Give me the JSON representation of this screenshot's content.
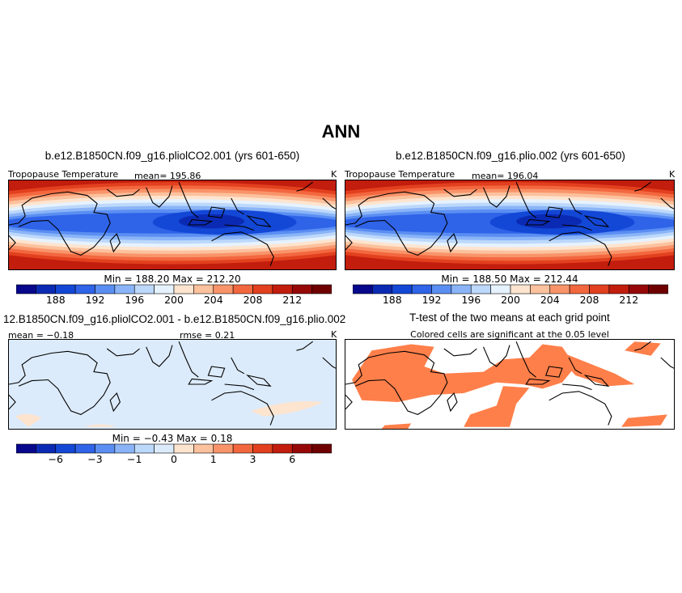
{
  "title": "ANN",
  "panels": [
    {
      "id": "p1",
      "case_title": "b.e12.B1850CN.f09_g16.pliolCO2.001 (yrs 601-650)",
      "variable": "Tropopause Temperature",
      "stat_left": "mean=  195.86",
      "units": "K",
      "minmax": "Min =  188.20  Max =  212.20",
      "colorbar_labels": [
        "188",
        "192",
        "196",
        "200",
        "204",
        "208",
        "212"
      ],
      "colorbar_colors": [
        "#08088c",
        "#0b2ab4",
        "#1347d6",
        "#2f63e8",
        "#5a8ef2",
        "#8ab4f7",
        "#bcd8fb",
        "#e6f2fe",
        "#fde4cf",
        "#fcc19d",
        "#f9946a",
        "#f3673f",
        "#e2401e",
        "#c21d0d",
        "#960808",
        "#6e0000"
      ],
      "field": "temperature"
    },
    {
      "id": "p2",
      "case_title": "b.e12.B1850CN.f09_g16.plio.002 (yrs 601-650)",
      "variable": "Tropopause Temperature",
      "stat_left": "mean=  196.04",
      "units": "K",
      "minmax": "Min =  188.50  Max =  212.44",
      "colorbar_labels": [
        "188",
        "192",
        "196",
        "200",
        "204",
        "208",
        "212"
      ],
      "colorbar_colors": [
        "#08088c",
        "#0b2ab4",
        "#1347d6",
        "#2f63e8",
        "#5a8ef2",
        "#8ab4f7",
        "#bcd8fb",
        "#e6f2fe",
        "#fde4cf",
        "#fcc19d",
        "#f9946a",
        "#f3673f",
        "#e2401e",
        "#c21d0d",
        "#960808",
        "#6e0000"
      ],
      "field": "temperature"
    },
    {
      "id": "p3",
      "case_title": "12.B1850CN.f09_g16.pliolCO2.001 - b.e12.B1850CN.f09_g16.plio.002",
      "variable": "",
      "stat_left": "mean =  −0.18",
      "stat_mid": "rmse =   0.21",
      "units": "K",
      "minmax": "Min =  −0.43  Max =   0.18",
      "colorbar_labels": [
        "−6",
        "−3",
        "−1",
        "0",
        "1",
        "3",
        "6"
      ],
      "colorbar_colors": [
        "#08088c",
        "#0b2ab4",
        "#1347d6",
        "#2f63e8",
        "#5a8ef2",
        "#8ab4f7",
        "#bcd8fb",
        "#dcebfb",
        "#fde4cf",
        "#fcc19d",
        "#f9946a",
        "#f3673f",
        "#e2401e",
        "#c21d0d",
        "#960808",
        "#6e0000"
      ],
      "field": "difference"
    },
    {
      "id": "p4",
      "case_title": "T-test of the two means at each grid point",
      "subtitle": "Colored cells are significant at the 0.05 level",
      "field": "ttest",
      "significant_color": "#ff7f4a"
    }
  ]
}
